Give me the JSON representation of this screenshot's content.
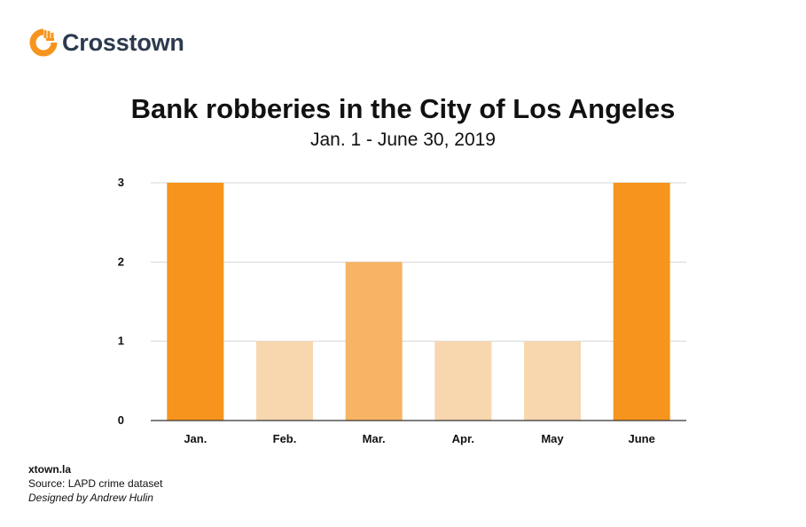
{
  "brand": {
    "name": "Crosstown",
    "logo_icon": "crosstown-logo-icon",
    "logo_color": "#f7941d"
  },
  "chart_data": {
    "type": "bar",
    "title": "Bank robberies in the City of Los Angeles",
    "subtitle": "Jan. 1 - June 30, 2019",
    "categories": [
      "Jan.",
      "Feb.",
      "Mar.",
      "Apr.",
      "May",
      "June"
    ],
    "values": [
      3,
      1,
      2,
      1,
      1,
      3
    ],
    "colors": [
      "#f7941d",
      "#f8d7ae",
      "#f7b464",
      "#f8d7ae",
      "#f8d7ae",
      "#f7941d"
    ],
    "ylim": [
      0,
      3
    ],
    "yticks": [
      0,
      1,
      2,
      3
    ],
    "grid": true,
    "legend": "none"
  },
  "footer": {
    "site": "xtown.la",
    "source": "Source: LAPD crime dataset",
    "credit": "Designed by Andrew Hulin"
  }
}
